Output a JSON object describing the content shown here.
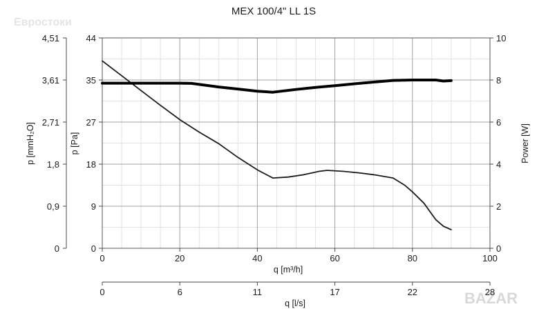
{
  "watermark_top": "Евростоки",
  "watermark_bottom": "BAZAR",
  "chart_data": {
    "type": "line",
    "title": "MEX 100/4\" LL 1S",
    "xlabel": "q [m³/h]",
    "x2label": "q [l/s]",
    "ylabel_left_outer": "p [mmH₂O]",
    "ylabel_left": "p [Pa]",
    "ylabel_right": "Power [W]",
    "xlim": [
      0,
      100
    ],
    "ylim": [
      0,
      44
    ],
    "y2lim": [
      0,
      10
    ],
    "x_ticks": [
      0,
      20,
      40,
      60,
      80,
      100
    ],
    "x2_ticks": [
      "0",
      "6",
      "11",
      "17",
      "22",
      "28"
    ],
    "y_ticks": [
      "0",
      "9",
      "18",
      "27",
      "35",
      "44"
    ],
    "y_outer_ticks": [
      "0",
      "0,9",
      "1,8",
      "2,71",
      "3,61",
      "4,51"
    ],
    "y2_ticks": [
      "0",
      "2",
      "4",
      "6",
      "8",
      "10"
    ],
    "grid": true,
    "series": [
      {
        "axis": "left",
        "color": "#1a1a1a",
        "x": [
          0,
          5,
          10,
          15,
          20,
          25,
          30,
          35,
          40,
          44,
          48,
          52,
          56,
          58,
          62,
          66,
          70,
          75,
          78,
          80,
          83,
          86,
          88,
          90
        ],
        "y": [
          39.2,
          36.1,
          33.0,
          29.9,
          26.9,
          24.3,
          21.9,
          19.0,
          16.4,
          14.7,
          14.9,
          15.4,
          16.1,
          16.3,
          16.1,
          15.8,
          15.4,
          14.7,
          13.2,
          11.8,
          9.4,
          6.0,
          4.6,
          3.9
        ]
      },
      {
        "axis": "right",
        "color": "#000000",
        "x": [
          0,
          10,
          20,
          23,
          30,
          35,
          40,
          44,
          50,
          55,
          60,
          65,
          70,
          75,
          80,
          86,
          88,
          90
        ],
        "y": [
          7.85,
          7.85,
          7.85,
          7.84,
          7.67,
          7.57,
          7.47,
          7.42,
          7.55,
          7.65,
          7.73,
          7.82,
          7.9,
          7.98,
          8.0,
          8.0,
          7.95,
          7.97
        ]
      }
    ]
  }
}
